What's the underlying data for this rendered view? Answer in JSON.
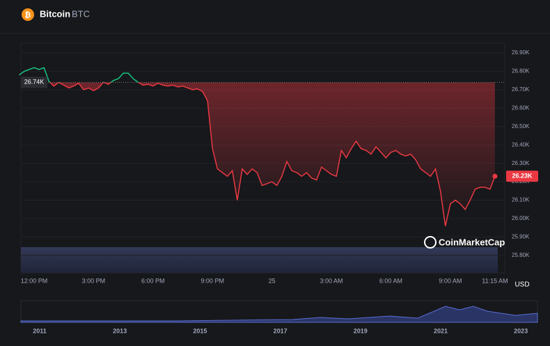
{
  "header": {
    "name": "Bitcoin",
    "symbol": "BTC"
  },
  "chart_data": {
    "type": "line",
    "categories": [
      null,
      null,
      null,
      "12:00 PM",
      null,
      null,
      null,
      null,
      null,
      null,
      null,
      null,
      null,
      null,
      null,
      "3:00 PM",
      null,
      null,
      null,
      null,
      null,
      null,
      null,
      null,
      null,
      null,
      null,
      "6:00 PM",
      null,
      null,
      null,
      null,
      null,
      null,
      null,
      null,
      null,
      null,
      null,
      "9:00 PM",
      null,
      null,
      null,
      null,
      null,
      null,
      null,
      null,
      null,
      null,
      null,
      "25",
      null,
      null,
      null,
      null,
      null,
      null,
      null,
      null,
      null,
      null,
      null,
      "3:00 AM",
      null,
      null,
      null,
      null,
      null,
      null,
      null,
      null,
      null,
      null,
      null,
      "6:00 AM",
      null,
      null,
      null,
      null,
      null,
      null,
      null,
      null,
      null,
      null,
      null,
      "9:00 AM",
      null,
      null,
      null,
      null,
      null,
      null,
      null,
      null,
      "11:15 AM"
    ],
    "values": [
      26780,
      26800,
      26810,
      26820,
      26810,
      26820,
      26745,
      26720,
      26740,
      26725,
      26710,
      26720,
      26735,
      26700,
      26710,
      26695,
      26710,
      26740,
      26730,
      26750,
      26760,
      26790,
      26790,
      26760,
      26740,
      26725,
      26730,
      26720,
      26735,
      26725,
      26720,
      26725,
      26715,
      26720,
      26710,
      26700,
      26705,
      26690,
      26640,
      26380,
      26270,
      26250,
      26230,
      26260,
      26100,
      26270,
      26240,
      26270,
      26250,
      26180,
      26190,
      26200,
      26180,
      26230,
      26310,
      26260,
      26250,
      26230,
      26250,
      26220,
      26210,
      26280,
      26260,
      26240,
      26230,
      26370,
      26330,
      26380,
      26420,
      26380,
      26370,
      26350,
      26390,
      26360,
      26330,
      26360,
      26370,
      26350,
      26340,
      26350,
      26320,
      26270,
      26250,
      26230,
      26270,
      26150,
      25960,
      26080,
      26100,
      26080,
      26050,
      26100,
      26160,
      26170,
      26170,
      26160,
      26230
    ],
    "up_color": "#16c784",
    "down_color": "#ea3943",
    "ylim": [
      25705,
      26953
    ],
    "yticks": [
      {
        "value": 25800,
        "label": "25.80K"
      },
      {
        "value": 25900,
        "label": "25.90K"
      },
      {
        "value": 26000,
        "label": "26.00K"
      },
      {
        "value": 26100,
        "label": "26.10K"
      },
      {
        "value": 26200,
        "label": "26.20K"
      },
      {
        "value": 26300,
        "label": "26.30K"
      },
      {
        "value": 26400,
        "label": "26.40K"
      },
      {
        "value": 26500,
        "label": "26.50K"
      },
      {
        "value": 26600,
        "label": "26.60K"
      },
      {
        "value": 26700,
        "label": "26.70K"
      },
      {
        "value": 26800,
        "label": "26.80K"
      },
      {
        "value": 26900,
        "label": "26.90K"
      }
    ],
    "reference": {
      "value": 26740,
      "label": "26.74K"
    },
    "current": {
      "value": 26230,
      "label": "26.23K"
    },
    "currency": "USD",
    "watermark": "CoinMarketCap",
    "grid": true
  },
  "navigator": {
    "labels": [
      "2011",
      "2013",
      "2015",
      "2017",
      "2019",
      "2021",
      "2023"
    ]
  }
}
